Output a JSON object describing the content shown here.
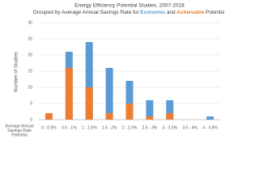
{
  "chart_data": {
    "type": "bar",
    "title": "Energy Efficiency Potential Studies, 2007-2018",
    "subtitle": [
      "Grouped by Average Annual Savings Rate for",
      "Economic",
      "and",
      "Achievable",
      "Potential"
    ],
    "x_label": [
      "Average Annual",
      "Savings Rate",
      "Potential"
    ],
    "y_label": "Number of Studies",
    "categories": [
      "0 - 0.5%",
      "0.5 - 1%",
      "1 - 1.5%",
      "1.5 - 2%",
      "2 - 2.5%",
      "2.5 - 3%",
      "3 - 3.5%",
      "3.5 - 4%",
      "4 - 4.5%"
    ],
    "series": [
      {
        "color": "#5b9bd5",
        "values": [
          0,
          21,
          24,
          16,
          12,
          6,
          6,
          0,
          1
        ]
      },
      {
        "color": "#ed7d31",
        "values": [
          2,
          16,
          10,
          2,
          5,
          1,
          2,
          0,
          0
        ]
      }
    ],
    "ylim": [
      0,
      30
    ],
    "yticks": [
      0,
      5,
      10,
      15,
      20,
      25,
      30
    ],
    "grid": true
  }
}
